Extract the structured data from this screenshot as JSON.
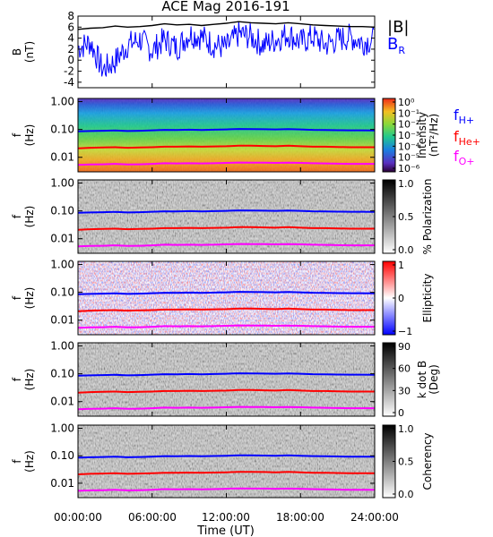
{
  "chart_data": {
    "type": "multi-panel spectrogram",
    "title": "ACE Mag 2016-191",
    "xlabel": "Time (UT)",
    "x_ticks": [
      "00:00:00",
      "06:00:00",
      "12:00:00",
      "18:00:00",
      "24:00:00"
    ],
    "x_range_hours": [
      0,
      24
    ],
    "panels": [
      {
        "type": "line",
        "ylabel": "B",
        "yunit": "(nT)",
        "ylim": [
          -5,
          8
        ],
        "y_ticks": [
          "-4",
          "-2",
          "0",
          "2",
          "4",
          "6",
          "8"
        ],
        "legend": [
          "|B|",
          "B",
          "R"
        ],
        "series": [
          {
            "name": "|B|",
            "color": "#000000",
            "x": [
              0,
              1,
              2,
              3,
              4,
              5,
              6,
              7,
              8,
              9,
              10,
              11,
              12,
              13,
              14,
              15,
              16,
              17,
              18,
              19,
              20,
              21,
              22,
              23,
              24
            ],
            "y": [
              5.6,
              5.8,
              5.9,
              6.2,
              6.0,
              6.1,
              6.3,
              6.6,
              6.4,
              6.5,
              6.3,
              6.5,
              6.7,
              7.0,
              6.8,
              6.7,
              6.6,
              6.8,
              6.6,
              6.4,
              6.3,
              6.2,
              6.1,
              6.1,
              6.0
            ]
          },
          {
            "name": "B_R",
            "color": "#0000ff",
            "x": [
              0,
              1,
              2,
              3,
              4,
              5,
              6,
              7,
              8,
              9,
              10,
              11,
              12,
              13,
              14,
              15,
              16,
              17,
              18,
              19,
              20,
              21,
              22,
              23,
              24
            ],
            "y": [
              3.0,
              4.0,
              -1.0,
              0.5,
              3.5,
              4.5,
              2.5,
              4.5,
              3.0,
              5.5,
              5.0,
              3.5,
              3.0,
              5.5,
              5.0,
              3.5,
              4.5,
              5.5,
              4.0,
              5.0,
              3.5,
              4.5,
              5.0,
              4.0,
              4.5
            ]
          }
        ]
      },
      {
        "type": "heatmap",
        "ylabel": "f",
        "yunit": "(Hz)",
        "yscale": "log",
        "ylim": [
          0.003,
          1.3
        ],
        "y_ticks": [
          "1.00",
          "0.10",
          "0.01"
        ],
        "colorbar": {
          "label": "Intensity",
          "unit": "(nT²/Hz)",
          "ticks": [
            "10⁰",
            "10⁻¹",
            "10⁻²",
            "10⁻³",
            "10⁻⁴",
            "10⁻⁵",
            "10⁻⁶"
          ],
          "colormap": "rainbow"
        },
        "legend": [
          "f",
          "H+",
          "f",
          "He+",
          "f",
          "O+"
        ]
      },
      {
        "type": "heatmap",
        "ylabel": "f",
        "yunit": "(Hz)",
        "yscale": "log",
        "ylim": [
          0.003,
          1.3
        ],
        "y_ticks": [
          "1.00",
          "0.10",
          "0.01"
        ],
        "colorbar": {
          "label": "% Polarization",
          "ticks": [
            "1.0",
            "0.5",
            "0.0"
          ],
          "colormap": "gray"
        }
      },
      {
        "type": "heatmap",
        "ylabel": "f",
        "yunit": "(Hz)",
        "yscale": "log",
        "ylim": [
          0.003,
          1.3
        ],
        "y_ticks": [
          "1.00",
          "0.10",
          "0.01"
        ],
        "colorbar": {
          "label": "Ellipticity",
          "ticks": [
            "1",
            "0",
            "−1"
          ],
          "colormap": "blue-white-red"
        }
      },
      {
        "type": "heatmap",
        "ylabel": "f",
        "yunit": "(Hz)",
        "yscale": "log",
        "ylim": [
          0.003,
          1.3
        ],
        "y_ticks": [
          "1.00",
          "0.10",
          "0.01"
        ],
        "colorbar": {
          "label": "k dot B",
          "unit": "(Deg)",
          "ticks": [
            "90",
            "60",
            "30",
            "0"
          ],
          "colormap": "gray"
        }
      },
      {
        "type": "heatmap",
        "ylabel": "f",
        "yunit": "(Hz)",
        "yscale": "log",
        "ylim": [
          0.003,
          1.3
        ],
        "y_ticks": [
          "1.00",
          "0.10",
          "0.01"
        ],
        "colorbar": {
          "label": "Coherency",
          "ticks": [
            "1.0",
            "0.5",
            "0.0"
          ],
          "colormap": "gray"
        }
      }
    ],
    "overlay_lines": [
      {
        "name": "f_H+",
        "color": "#0000ff",
        "x": [
          0,
          1,
          2,
          3,
          4,
          5,
          6,
          7,
          8,
          9,
          10,
          11,
          12,
          13,
          14,
          15,
          16,
          17,
          18,
          19,
          20,
          21,
          22,
          23,
          24
        ],
        "y": [
          0.085,
          0.088,
          0.09,
          0.092,
          0.088,
          0.09,
          0.093,
          0.097,
          0.096,
          0.098,
          0.096,
          0.098,
          0.1,
          0.104,
          0.103,
          0.102,
          0.1,
          0.103,
          0.1,
          0.097,
          0.096,
          0.094,
          0.093,
          0.093,
          0.092
        ]
      },
      {
        "name": "f_He+",
        "color": "#ff0000",
        "x": [
          0,
          1,
          2,
          3,
          4,
          5,
          6,
          7,
          8,
          9,
          10,
          11,
          12,
          13,
          14,
          15,
          16,
          17,
          18,
          19,
          20,
          21,
          22,
          23,
          24
        ],
        "y": [
          0.021,
          0.022,
          0.0225,
          0.023,
          0.022,
          0.0225,
          0.023,
          0.024,
          0.024,
          0.0245,
          0.024,
          0.0245,
          0.025,
          0.026,
          0.026,
          0.0255,
          0.025,
          0.026,
          0.025,
          0.024,
          0.024,
          0.0235,
          0.023,
          0.023,
          0.023
        ]
      },
      {
        "name": "f_O+",
        "color": "#ff00ff",
        "x": [
          0,
          1,
          2,
          3,
          4,
          5,
          6,
          7,
          8,
          9,
          10,
          11,
          12,
          13,
          14,
          15,
          16,
          17,
          18,
          19,
          20,
          21,
          22,
          23,
          24
        ],
        "y": [
          0.0053,
          0.0055,
          0.0056,
          0.0058,
          0.0055,
          0.0056,
          0.0058,
          0.0061,
          0.006,
          0.0061,
          0.006,
          0.0061,
          0.0063,
          0.0065,
          0.0064,
          0.0064,
          0.0063,
          0.0064,
          0.0063,
          0.0061,
          0.006,
          0.0059,
          0.0058,
          0.0058,
          0.0058
        ]
      }
    ]
  }
}
